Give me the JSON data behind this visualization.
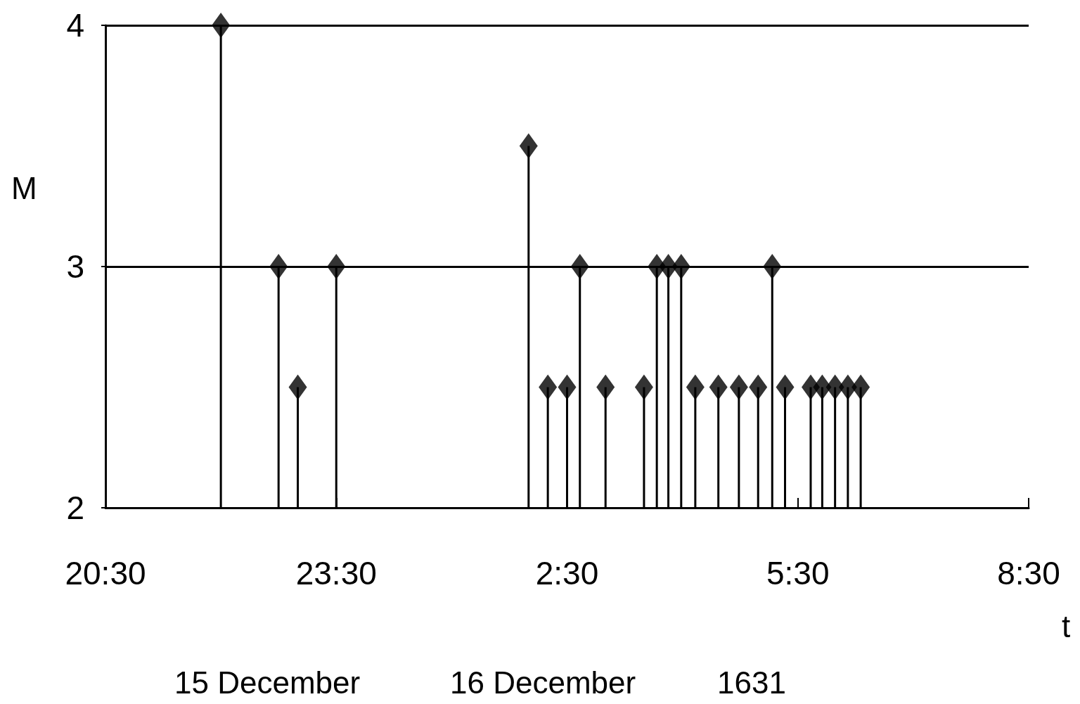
{
  "chart_data": {
    "type": "lollipop",
    "xlabel": "t",
    "ylabel": "M",
    "x": [
      "1631-12-15T22:00",
      "1631-12-15T22:45",
      "1631-12-15T23:00",
      "1631-12-15T23:30",
      "1631-12-16T02:00",
      "1631-12-16T02:15",
      "1631-12-16T02:30",
      "1631-12-16T02:40",
      "1631-12-16T03:00",
      "1631-12-16T03:30",
      "1631-12-16T03:40",
      "1631-12-16T03:49",
      "1631-12-16T03:59",
      "1631-12-16T04:10",
      "1631-12-16T04:28",
      "1631-12-16T04:44",
      "1631-12-16T04:59",
      "1631-12-16T05:10",
      "1631-12-16T05:20",
      "1631-12-16T05:40",
      "1631-12-16T05:49",
      "1631-12-16T05:59",
      "1631-12-16T06:09",
      "1631-12-16T06:19"
    ],
    "values": [
      4,
      3,
      2.5,
      3,
      3.5,
      2.5,
      2.5,
      3,
      2.5,
      2.5,
      3,
      3,
      3,
      2.5,
      2.5,
      2.5,
      2.5,
      3,
      2.5,
      2.5,
      2.5,
      2.5,
      2.5,
      2.5
    ],
    "color": "#000000",
    "xlim": [
      "1631-12-15T20:30",
      "1631-12-16T08:30"
    ],
    "xticks": [
      {
        "value": "1631-12-15T20:30",
        "label": "20:30"
      },
      {
        "value": "1631-12-15T23:30",
        "label": "23:30"
      },
      {
        "value": "1631-12-16T02:30",
        "label": "2:30"
      },
      {
        "value": "1631-12-16T05:30",
        "label": "5:30"
      },
      {
        "value": "1631-12-16T08:30",
        "label": "8:30"
      }
    ],
    "ylim": [
      2,
      4
    ],
    "yticks": [
      2,
      3,
      4
    ],
    "grid": "y",
    "marker": "diamond",
    "annotations": [
      "15 December",
      "16 December",
      "1631"
    ]
  }
}
